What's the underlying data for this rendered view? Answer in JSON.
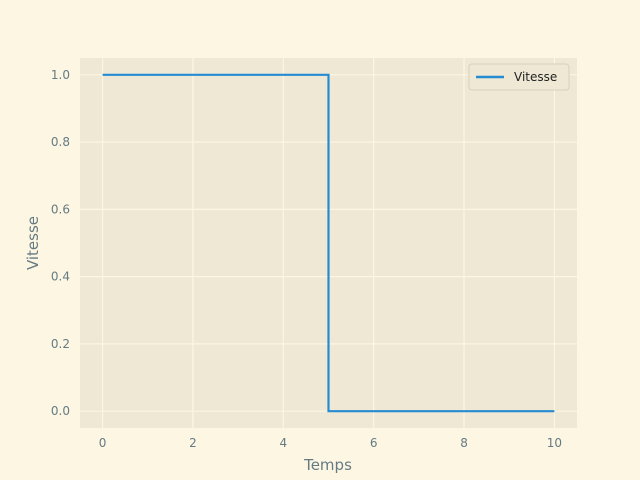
{
  "chart_data": {
    "type": "line",
    "drawstyle": "step",
    "title": "",
    "xlabel": "Temps",
    "ylabel": "Vitesse",
    "xlim": [
      -0.5,
      10.5
    ],
    "ylim": [
      -0.05,
      1.05
    ],
    "xticks": [
      0,
      2,
      4,
      6,
      8,
      10
    ],
    "yticks": [
      0.0,
      0.2,
      0.4,
      0.6,
      0.8,
      1.0
    ],
    "xtick_labels": [
      "0",
      "2",
      "4",
      "6",
      "8",
      "10"
    ],
    "ytick_labels": [
      "0.0",
      "0.2",
      "0.4",
      "0.6",
      "0.8",
      "1.0"
    ],
    "grid": true,
    "legend": "top-right",
    "series": [
      {
        "name": "Vitesse",
        "color": "#268bd2",
        "x": [
          0,
          5,
          5,
          10
        ],
        "y": [
          1,
          1,
          0,
          0
        ]
      }
    ]
  },
  "colors": {
    "figure_bg": "#fdf6e3",
    "axes_bg": "#eee8d5",
    "grid": "#fdf6e3",
    "text": "#657b83"
  }
}
